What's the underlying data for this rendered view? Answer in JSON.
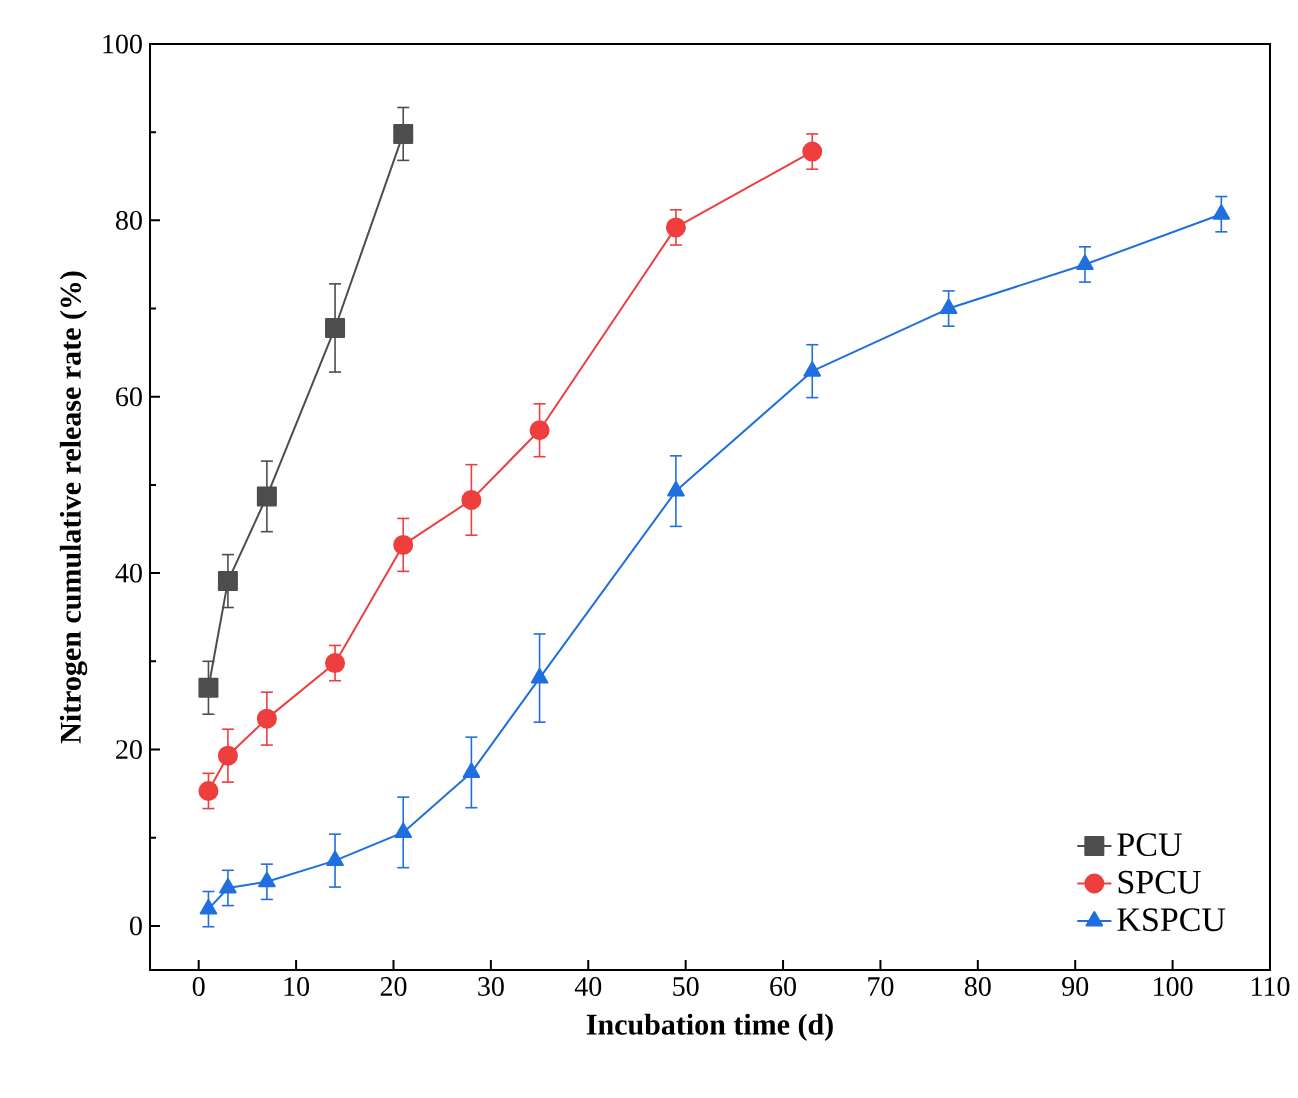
{
  "chart_data": {
    "type": "line",
    "xlabel": "Incubation time (d)",
    "ylabel": "Nitrogen cumulative release rate (%)",
    "xlim": [
      -5,
      110
    ],
    "ylim": [
      -5,
      100
    ],
    "xticks": [
      0,
      10,
      20,
      30,
      40,
      50,
      60,
      70,
      80,
      90,
      100,
      110
    ],
    "yticks": [
      0,
      20,
      40,
      60,
      80,
      100
    ],
    "legend": "bottom right",
    "line_style": "solid",
    "series": [
      {
        "name": "PCU",
        "color": "#4d4d4d",
        "marker": "square",
        "x": [
          1,
          3,
          7,
          14,
          21
        ],
        "values": [
          27.0,
          39.1,
          48.7,
          67.8,
          89.8
        ],
        "errors": [
          3,
          3,
          4,
          5,
          3
        ]
      },
      {
        "name": "SPCU",
        "color": "#ef3e3e",
        "marker": "circle",
        "x": [
          1,
          3,
          7,
          14,
          21,
          28,
          35,
          49,
          63
        ],
        "values": [
          15.3,
          19.3,
          23.5,
          29.8,
          43.2,
          48.3,
          56.2,
          79.2,
          87.8
        ],
        "errors": [
          2,
          3,
          3,
          2,
          3,
          4,
          3,
          2,
          2
        ]
      },
      {
        "name": "KSPCU",
        "color": "#1f6fe0",
        "marker": "triangle",
        "x": [
          1,
          3,
          7,
          14,
          21,
          28,
          35,
          49,
          63,
          77,
          91,
          105
        ],
        "values": [
          1.9,
          4.3,
          5.0,
          7.4,
          10.6,
          17.4,
          28.1,
          49.3,
          62.9,
          70.0,
          75.0,
          80.7
        ],
        "errors": [
          2,
          2,
          2,
          3,
          4,
          4,
          5,
          4,
          3,
          2,
          2,
          2
        ]
      }
    ]
  }
}
